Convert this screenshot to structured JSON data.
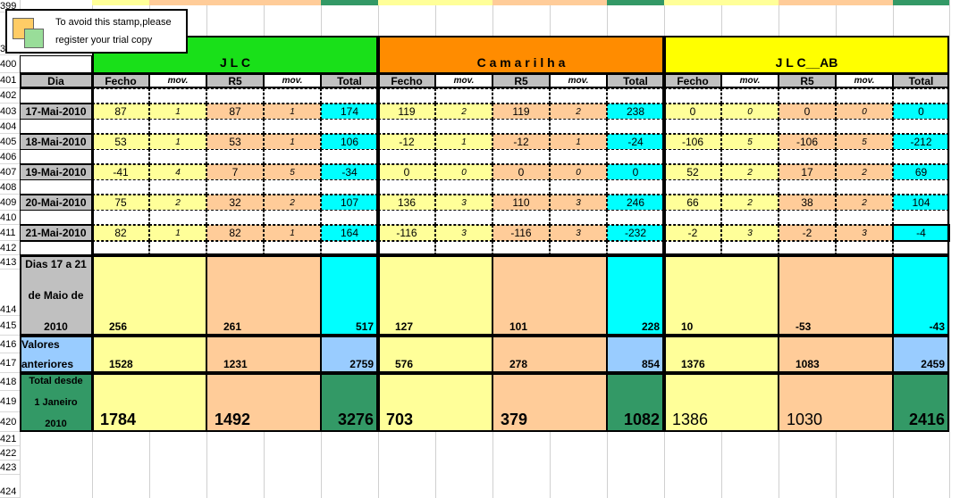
{
  "row_numbers": [
    "399",
    "399",
    "400",
    "401",
    "402",
    "403",
    "404",
    "405",
    "406",
    "407",
    "408",
    "409",
    "410",
    "411",
    "412",
    "413",
    "414",
    "415",
    "416",
    "417",
    "418",
    "419",
    "420",
    "421",
    "422",
    "423",
    "424"
  ],
  "stamp": {
    "line1": "To avoid this stamp,please",
    "line2": "register your trial copy"
  },
  "groups": [
    {
      "name": "J  L  C",
      "color": "#19e019"
    },
    {
      "name": "C a m a r i l h a",
      "color": "#ff8c00"
    },
    {
      "name": "J L C__AB",
      "color": "#ffff00"
    }
  ],
  "headers": {
    "dia": "Dia",
    "cols": [
      "Fecho",
      "mov.",
      "R5",
      "mov.",
      "Total"
    ]
  },
  "days": [
    {
      "date": "17-Mai-2010",
      "values": [
        [
          "87",
          "1",
          "87",
          "1",
          "174"
        ],
        [
          "119",
          "2",
          "119",
          "2",
          "238"
        ],
        [
          "0",
          "0",
          "0",
          "0",
          "0"
        ]
      ]
    },
    {
      "date": "18-Mai-2010",
      "values": [
        [
          "53",
          "1",
          "53",
          "1",
          "106"
        ],
        [
          "-12",
          "1",
          "-12",
          "1",
          "-24"
        ],
        [
          "-106",
          "5",
          "-106",
          "5",
          "-212"
        ]
      ]
    },
    {
      "date": "19-Mai-2010",
      "values": [
        [
          "-41",
          "4",
          "7",
          "5",
          "-34"
        ],
        [
          "0",
          "0",
          "0",
          "0",
          "0"
        ],
        [
          "52",
          "2",
          "17",
          "2",
          "69"
        ]
      ]
    },
    {
      "date": "20-Mai-2010",
      "values": [
        [
          "75",
          "2",
          "32",
          "2",
          "107"
        ],
        [
          "136",
          "3",
          "110",
          "3",
          "246"
        ],
        [
          "66",
          "2",
          "38",
          "2",
          "104"
        ]
      ]
    },
    {
      "date": "21-Mai-2010",
      "values": [
        [
          "82",
          "1",
          "82",
          "1",
          "164"
        ],
        [
          "-116",
          "3",
          "-116",
          "3",
          "-232"
        ],
        [
          "-2",
          "3",
          "-2",
          "3",
          "-4"
        ]
      ]
    }
  ],
  "summary": [
    {
      "label_lines": [
        "Dias 17 a 21",
        "de Maio de",
        "2010"
      ],
      "values": [
        [
          "256",
          "261",
          "517"
        ],
        [
          "127",
          "101",
          "228"
        ],
        [
          "10",
          "-53",
          "-43"
        ]
      ]
    },
    {
      "label_lines": [
        "Valores",
        "anteriores"
      ],
      "values": [
        [
          "1528",
          "1231",
          "2759"
        ],
        [
          "576",
          "278",
          "854"
        ],
        [
          "1376",
          "1083",
          "2459"
        ]
      ]
    },
    {
      "label_lines": [
        "Total desde",
        "1 Janeiro",
        "2010"
      ],
      "values": [
        [
          "1784",
          "1492",
          "3276"
        ],
        [
          "703",
          "379",
          "1082"
        ],
        [
          "1386",
          "1030",
          "2416"
        ]
      ]
    }
  ],
  "colors": {
    "yellow": "#ffff99",
    "peach": "#ffcc99",
    "cyan": "#00ffff",
    "light_blue": "#99ccff",
    "dark_green": "#339966",
    "gray": "#c0c0c0"
  }
}
